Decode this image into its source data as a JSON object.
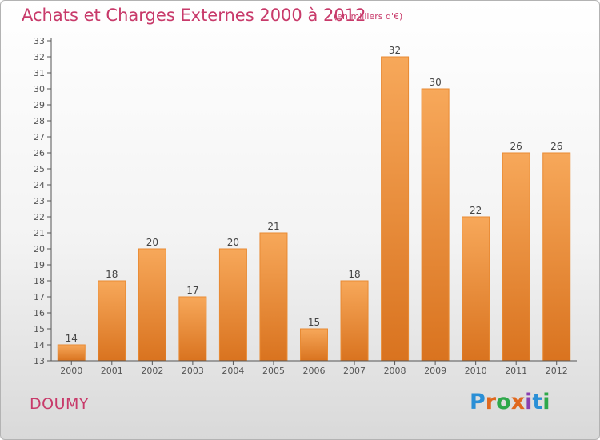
{
  "header": {
    "title": "Achats et Charges Externes 2000 à 2012",
    "subtitle": "(en milliers d'€)"
  },
  "footer": {
    "location": "DOUMY",
    "logo_text": "Proxiti",
    "logo_colors": [
      "#2a8fd6",
      "#e0681e",
      "#2ea84a",
      "#e0681e",
      "#8a3fb0",
      "#2a8fd6",
      "#2ea84a"
    ]
  },
  "colors": {
    "bar_top": "#f7a85a",
    "bar_bottom": "#d9731f",
    "bar_edge": "#e88a33",
    "axis": "#555555",
    "grid": "#e0e0e0",
    "accent": "#c83a6a"
  },
  "chart_data": {
    "type": "bar",
    "title": "Achats et Charges Externes 2000 à 2012",
    "xlabel": "",
    "ylabel": "",
    "categories": [
      "2000",
      "2001",
      "2002",
      "2003",
      "2004",
      "2005",
      "2006",
      "2007",
      "2008",
      "2009",
      "2010",
      "2011",
      "2012"
    ],
    "values": [
      14,
      18,
      20,
      17,
      20,
      21,
      15,
      18,
      32,
      30,
      22,
      26,
      26
    ],
    "ylim": [
      13,
      33
    ],
    "yticks": [
      13,
      14,
      15,
      16,
      17,
      18,
      19,
      20,
      21,
      22,
      23,
      24,
      25,
      26,
      27,
      28,
      29,
      30,
      31,
      32,
      33
    ],
    "grid": false,
    "data_labels": true
  }
}
